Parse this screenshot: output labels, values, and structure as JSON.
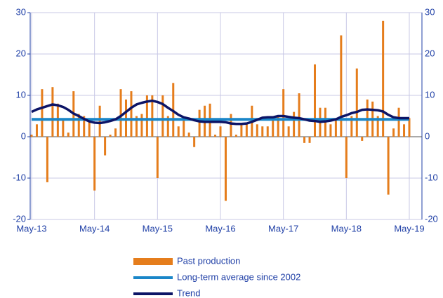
{
  "chart_data": {
    "type": "bar",
    "categories": [
      "May-13",
      null,
      null,
      null,
      null,
      null,
      null,
      null,
      null,
      null,
      null,
      null,
      "May-14",
      null,
      null,
      null,
      null,
      null,
      null,
      null,
      null,
      null,
      null,
      null,
      "May-15",
      null,
      null,
      null,
      null,
      null,
      null,
      null,
      null,
      null,
      null,
      null,
      "May-16",
      null,
      null,
      null,
      null,
      null,
      null,
      null,
      null,
      null,
      null,
      null,
      "May-17",
      null,
      null,
      null,
      null,
      null,
      null,
      null,
      null,
      null,
      null,
      null,
      "May-18",
      null,
      null,
      null,
      null,
      null,
      null,
      null,
      null,
      null,
      null,
      null,
      "May-19"
    ],
    "series": [
      {
        "name": "Past production",
        "type": "bar",
        "color": "#e57d1c",
        "values": [
          0.5,
          3,
          11.5,
          -11,
          12,
          8,
          4,
          1,
          11,
          5.5,
          5,
          3.5,
          -13,
          7.5,
          -4.5,
          0.5,
          2,
          11.5,
          9,
          11,
          5,
          5.5,
          10,
          10,
          -10,
          10,
          5,
          13,
          2.5,
          4,
          1,
          -2.5,
          6.5,
          7.5,
          8,
          0.5,
          2.5,
          -15.5,
          5.5,
          0.5,
          3,
          3,
          7.5,
          3,
          2.5,
          2.5,
          4,
          5,
          11.5,
          2.5,
          6,
          10.5,
          -1.5,
          -1.5,
          17.5,
          7,
          7,
          3,
          4,
          24.5,
          -10,
          5,
          16.5,
          -1,
          9,
          8.5,
          5,
          28,
          -14,
          2,
          7,
          3,
          4.5
        ]
      },
      {
        "name": "Long-term average since 2002",
        "type": "line",
        "color": "#1a86c8",
        "values": [
          4.2,
          4.2,
          4.2,
          4.2,
          4.2,
          4.2,
          4.2,
          4.2,
          4.2,
          4.2,
          4.2,
          4.2,
          4.2,
          4.2,
          4.2,
          4.2,
          4.2,
          4.2,
          4.2,
          4.2,
          4.2,
          4.2,
          4.2,
          4.2,
          4.2,
          4.2,
          4.2,
          4.2,
          4.2,
          4.2,
          4.2,
          4.2,
          4.2,
          4.2,
          4.2,
          4.2,
          4.2,
          4.2,
          4.2,
          4.2,
          4.2,
          4.2,
          4.2,
          4.2,
          4.2,
          4.2,
          4.2,
          4.2,
          4.2,
          4.2,
          4.2,
          4.2,
          4.2,
          4.2,
          4.2,
          4.2,
          4.2,
          4.2,
          4.2,
          4.2,
          4.2,
          4.2,
          4.2,
          4.2,
          4.2,
          4.2,
          4.2,
          4.2,
          4.2,
          4.2,
          4.2,
          4.2,
          4.2
        ]
      },
      {
        "name": "Trend",
        "type": "line",
        "color": "#0c1466",
        "values": [
          6.0,
          6.6,
          7.0,
          7.4,
          7.8,
          7.6,
          7.2,
          6.5,
          5.6,
          5.0,
          4.3,
          3.7,
          3.4,
          3.3,
          3.5,
          3.8,
          4.2,
          5.0,
          6.0,
          7.0,
          7.8,
          8.2,
          8.5,
          8.7,
          8.4,
          7.9,
          7.0,
          6.2,
          5.3,
          4.7,
          4.4,
          4.0,
          3.7,
          3.6,
          3.6,
          3.6,
          3.6,
          3.5,
          3.2,
          3.1,
          3.1,
          3.2,
          3.6,
          4.1,
          4.6,
          4.7,
          4.7,
          5.0,
          5.0,
          4.8,
          4.6,
          4.5,
          4.2,
          3.9,
          3.8,
          3.6,
          3.7,
          3.9,
          4.2,
          4.8,
          5.2,
          5.7,
          6.0,
          6.5,
          6.6,
          6.5,
          6.4,
          6.1,
          5.3,
          4.7,
          4.5,
          4.5,
          4.5
        ]
      }
    ],
    "ylim": [
      -20,
      30
    ],
    "yticks": [
      -20,
      -10,
      0,
      10,
      20,
      30
    ],
    "grid": true
  }
}
